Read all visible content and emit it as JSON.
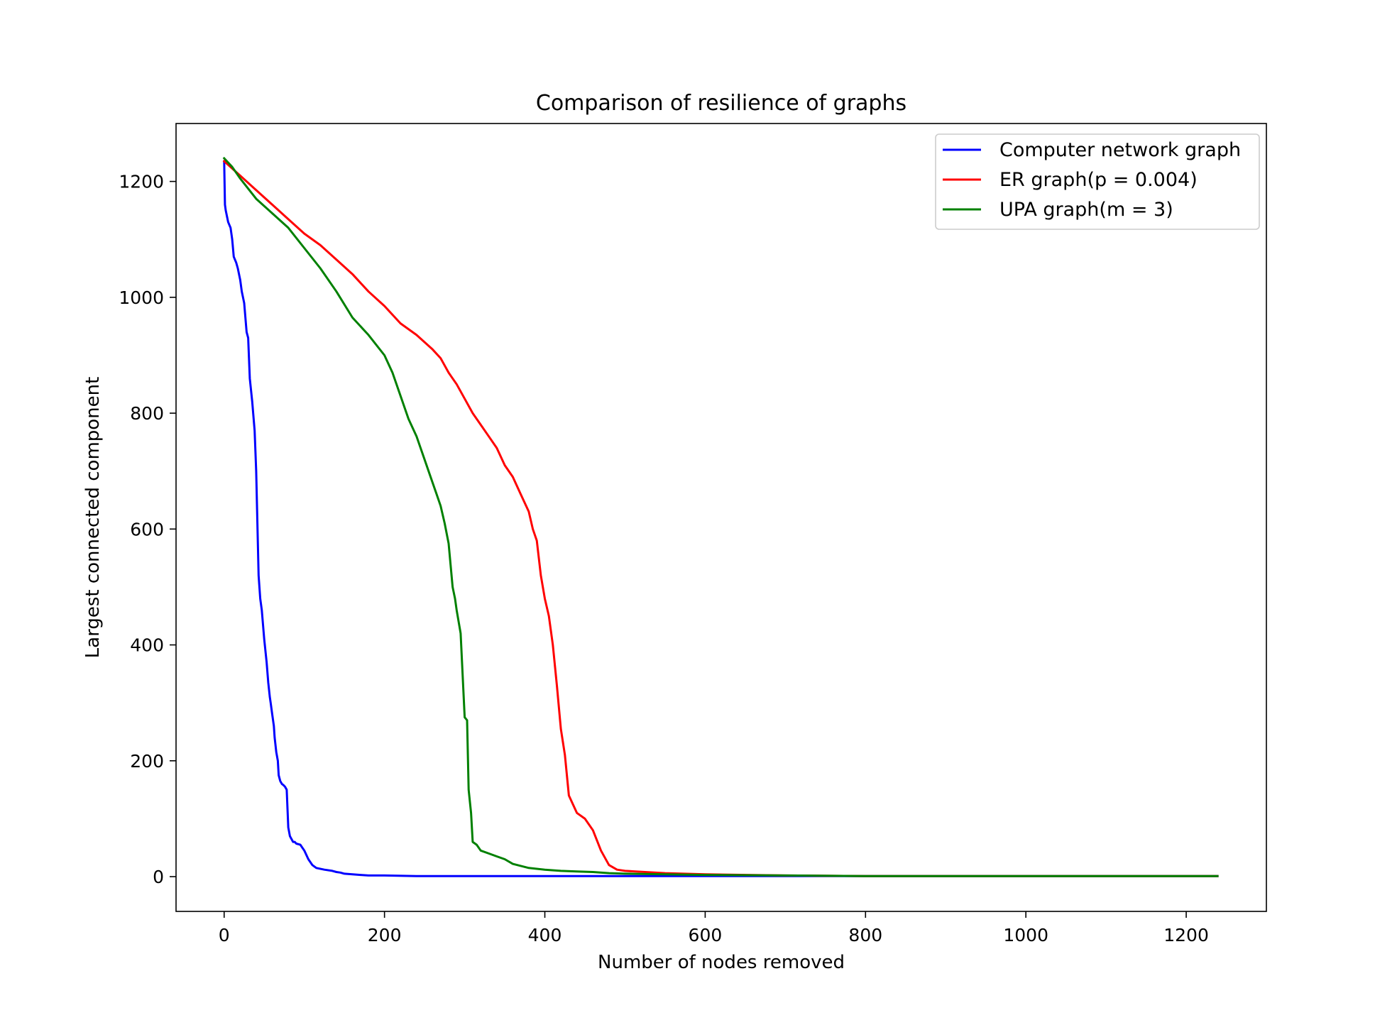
{
  "chart_data": {
    "type": "line",
    "title": "Comparison of resilience of graphs",
    "xlabel": "Number of nodes removed",
    "ylabel": "Largest connected component",
    "xlim": [
      -60,
      1300
    ],
    "ylim": [
      -60,
      1300
    ],
    "xticks": [
      0,
      200,
      400,
      600,
      800,
      1000,
      1200
    ],
    "yticks": [
      0,
      200,
      400,
      600,
      800,
      1000,
      1200
    ],
    "grid": false,
    "legend_position": "top-right",
    "series": [
      {
        "name": "Computer network graph",
        "color": "#0000ff",
        "x": [
          0,
          1,
          2,
          5,
          8,
          10,
          12,
          15,
          17,
          20,
          22,
          25,
          28,
          30,
          32,
          35,
          38,
          40,
          43,
          45,
          47,
          50,
          53,
          55,
          57,
          58,
          60,
          62,
          63,
          65,
          67,
          68,
          70,
          72,
          74,
          76,
          78,
          80,
          82,
          84,
          86,
          88,
          90,
          95,
          100,
          105,
          110,
          115,
          125,
          135,
          140,
          145,
          150,
          160,
          170,
          180,
          200,
          240,
          270,
          300,
          330,
          400,
          500,
          600,
          800,
          1000,
          1239
        ],
        "y": [
          1235,
          1160,
          1150,
          1130,
          1120,
          1100,
          1070,
          1060,
          1050,
          1030,
          1010,
          990,
          940,
          930,
          860,
          820,
          770,
          700,
          520,
          480,
          460,
          410,
          370,
          335,
          310,
          300,
          280,
          260,
          240,
          215,
          200,
          175,
          165,
          160,
          158,
          155,
          150,
          85,
          70,
          65,
          60,
          60,
          57,
          55,
          45,
          30,
          20,
          15,
          12,
          10,
          8,
          7,
          5,
          4,
          3,
          2,
          2,
          1,
          1,
          1,
          1,
          1,
          1,
          1,
          1,
          1,
          1
        ],
        "x_note": "",
        "y_note": ""
      },
      {
        "name": "ER graph(p = 0.004)",
        "color": "#ff0000",
        "x": [
          0,
          20,
          40,
          60,
          80,
          100,
          120,
          140,
          160,
          180,
          200,
          220,
          240,
          260,
          270,
          280,
          290,
          300,
          310,
          320,
          330,
          340,
          350,
          360,
          370,
          380,
          385,
          390,
          395,
          400,
          405,
          410,
          415,
          420,
          425,
          430,
          440,
          450,
          460,
          470,
          480,
          490,
          500,
          550,
          600,
          700,
          800,
          1000,
          1239
        ],
        "y": [
          1235,
          1210,
          1185,
          1160,
          1135,
          1110,
          1090,
          1065,
          1040,
          1010,
          985,
          955,
          935,
          910,
          895,
          870,
          850,
          825,
          800,
          780,
          760,
          740,
          710,
          690,
          660,
          630,
          600,
          580,
          520,
          480,
          450,
          400,
          330,
          255,
          210,
          140,
          110,
          100,
          80,
          45,
          20,
          12,
          10,
          6,
          4,
          2,
          1,
          1,
          1
        ],
        "x_note": "",
        "y_note": ""
      },
      {
        "name": "UPA graph(m = 3)",
        "color": "#008000",
        "x": [
          0,
          10,
          20,
          40,
          60,
          80,
          100,
          120,
          140,
          160,
          180,
          200,
          210,
          220,
          230,
          240,
          250,
          260,
          265,
          270,
          275,
          280,
          285,
          288,
          290,
          295,
          300,
          303,
          305,
          308,
          310,
          315,
          320,
          330,
          340,
          350,
          360,
          380,
          400,
          420,
          440,
          460,
          480,
          500,
          550,
          600,
          700,
          800,
          1000,
          1239
        ],
        "y": [
          1240,
          1225,
          1205,
          1170,
          1145,
          1120,
          1085,
          1050,
          1010,
          965,
          935,
          900,
          870,
          830,
          790,
          760,
          720,
          680,
          660,
          640,
          610,
          575,
          500,
          480,
          460,
          420,
          275,
          270,
          150,
          110,
          60,
          55,
          45,
          40,
          35,
          30,
          22,
          15,
          12,
          10,
          9,
          8,
          6,
          5,
          4,
          3,
          2,
          1,
          1,
          1
        ],
        "x_note": "",
        "y_note": ""
      }
    ]
  }
}
